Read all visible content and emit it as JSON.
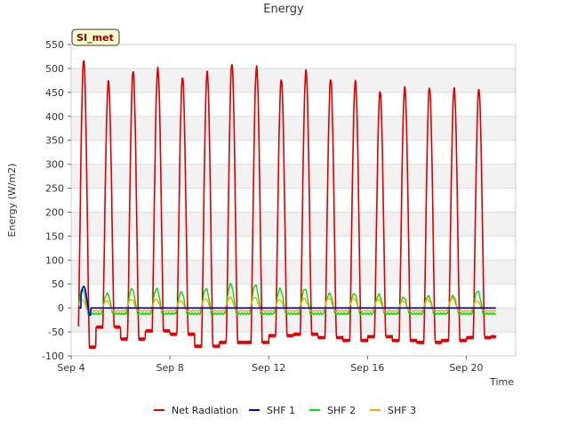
{
  "chart_data": {
    "type": "line",
    "title": "Energy",
    "site_label": "SI_met",
    "xlabel": "Time",
    "ylabel": "Energy (W/m2)",
    "ylim": [
      -100,
      550
    ],
    "yticks": [
      -100,
      -50,
      0,
      50,
      100,
      150,
      200,
      250,
      300,
      350,
      400,
      450,
      500,
      550
    ],
    "xlim_days": [
      4,
      22
    ],
    "xticks": [
      {
        "day": 4,
        "label": "Sep 4"
      },
      {
        "day": 8,
        "label": "Sep 8"
      },
      {
        "day": 12,
        "label": "Sep 12"
      },
      {
        "day": 16,
        "label": "Sep 16"
      },
      {
        "day": 20,
        "label": "Sep 20"
      }
    ],
    "grid": true,
    "legend_position": "bottom",
    "x_start_day": 4.3,
    "x_end_day": 21.2,
    "daily_peaks": {
      "days": [
        4,
        5,
        6,
        7,
        8,
        9,
        10,
        11,
        12,
        13,
        14,
        15,
        16,
        17,
        18,
        19,
        20,
        21
      ],
      "net_radiation_max": [
        518,
        472,
        495,
        500,
        482,
        492,
        510,
        503,
        478,
        495,
        478,
        473,
        453,
        460,
        460,
        458,
        457,
        0
      ],
      "net_radiation_night_min": [
        -82,
        -40,
        -65,
        -48,
        -55,
        -80,
        -72,
        -72,
        -58,
        -55,
        -62,
        -68,
        -60,
        -68,
        -72,
        -68,
        -62,
        -60
      ],
      "shf2_max": [
        40,
        30,
        40,
        40,
        33,
        40,
        50,
        48,
        40,
        40,
        30,
        30,
        28,
        22,
        25,
        25,
        35,
        0
      ],
      "shf3_max": [
        18,
        15,
        18,
        18,
        15,
        20,
        22,
        22,
        18,
        20,
        20,
        20,
        18,
        15,
        18,
        20,
        15,
        0
      ]
    },
    "series": [
      {
        "name": "Net Radiation",
        "color": "#dd0000"
      },
      {
        "name": "SHF 1",
        "color": "#0000cc"
      },
      {
        "name": "SHF 2",
        "color": "#00dd00"
      },
      {
        "name": "SHF 3",
        "color": "#ffa500"
      }
    ]
  }
}
